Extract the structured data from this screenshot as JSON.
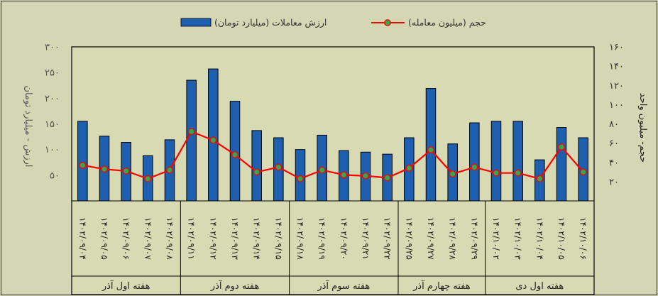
{
  "chart_data": {
    "type": "bar+line",
    "title": "",
    "legend": {
      "placement": "top-center",
      "bar_label": "ارزش معاملات (میلیارد تومان)",
      "line_label": "حجم (میلیون معامله)"
    },
    "ylabel_left": "ارزش - میلیارد تومان",
    "ylabel_right": "حجم- میلیون واحد",
    "ylim_left": [
      0,
      300
    ],
    "ylim_right": [
      0,
      160
    ],
    "yticks_left": [
      "۳۰۰",
      "۲۵۰",
      "۲۰۰",
      "۱۵۰",
      "۱۰۰",
      "۵۰"
    ],
    "yticks_right": [
      "۱۶۰",
      "۱۴۰",
      "۱۲۰",
      "۱۰۰",
      "۸۰",
      "۶۰",
      "۴۰",
      "۲۰"
    ],
    "yticks_left_values": [
      300,
      250,
      200,
      150,
      100,
      50
    ],
    "yticks_right_values": [
      160,
      140,
      120,
      100,
      80,
      60,
      40,
      20
    ],
    "categories": [
      "۱۴۰۲/۰۹/۰۴",
      "۱۴۰۲/۰۹/۰۵",
      "۱۴۰۲/۰۹/۰۶",
      "۱۴۰۲/۰۹/۰۷",
      "۱۴۰۲/۰۹/۰۸",
      "۱۴۰۲/۰۹/۱۱",
      "۱۴۰۲/۰۹/۱۲",
      "۱۴۰۲/۰۹/۱۳",
      "۱۴۰۲/۰۹/۱۴",
      "۱۴۰۲/۰۹/۱۵",
      "۱۴۰۲/۰۹/۱۸",
      "۱۴۰۲/۰۹/۱۹",
      "۱۴۰۲/۰۹/۲۰",
      "۱۴۰۲/۰۹/۲۱",
      "۱۴۰۲/۰۹/۲۲",
      "۱۴۰۲/۰۹/۲۵",
      "۱۴۰۲/۰۹/۲۷",
      "۱۴۰۲/۰۹/۲۸",
      "۱۴۰۲/۰۹/۲۹",
      "۱۴۰۲/۱۰/۰۲",
      "۱۴۰۲/۱۰/۰۳",
      "۱۴۰۲/۱۰/۰۴",
      "۱۴۰۲/۱۰/۰۵",
      "۱۴۰۲/۱۰/۰۶"
    ],
    "groups": [
      {
        "label": "هفته اول آذر",
        "count": 5
      },
      {
        "label": "هفته دوم آذر",
        "count": 5
      },
      {
        "label": "هفته سوم آذر",
        "count": 5
      },
      {
        "label": "هفته چهارم آذر",
        "count": 4
      },
      {
        "label": "هفته اول دی",
        "count": 5
      }
    ],
    "series": [
      {
        "name": "ارزش معاملات (میلیارد تومان)",
        "type": "bar",
        "axis": "left",
        "color": "#1f5faf",
        "values": [
          155,
          126,
          114,
          88,
          119,
          235,
          257,
          194,
          137,
          123,
          100,
          128,
          98,
          95,
          91,
          123,
          219,
          111,
          152,
          155,
          155,
          80,
          143,
          123
        ]
      },
      {
        "name": "حجم (میلیون معامله)",
        "type": "line",
        "axis": "right",
        "color": "#ff0000",
        "marker_color": "#2fa84f",
        "values": [
          37,
          33,
          31,
          23,
          32,
          72,
          63,
          48,
          30,
          35,
          23,
          32,
          27,
          26,
          24,
          34,
          53,
          28,
          35,
          29,
          29,
          23,
          56,
          30
        ]
      }
    ]
  }
}
